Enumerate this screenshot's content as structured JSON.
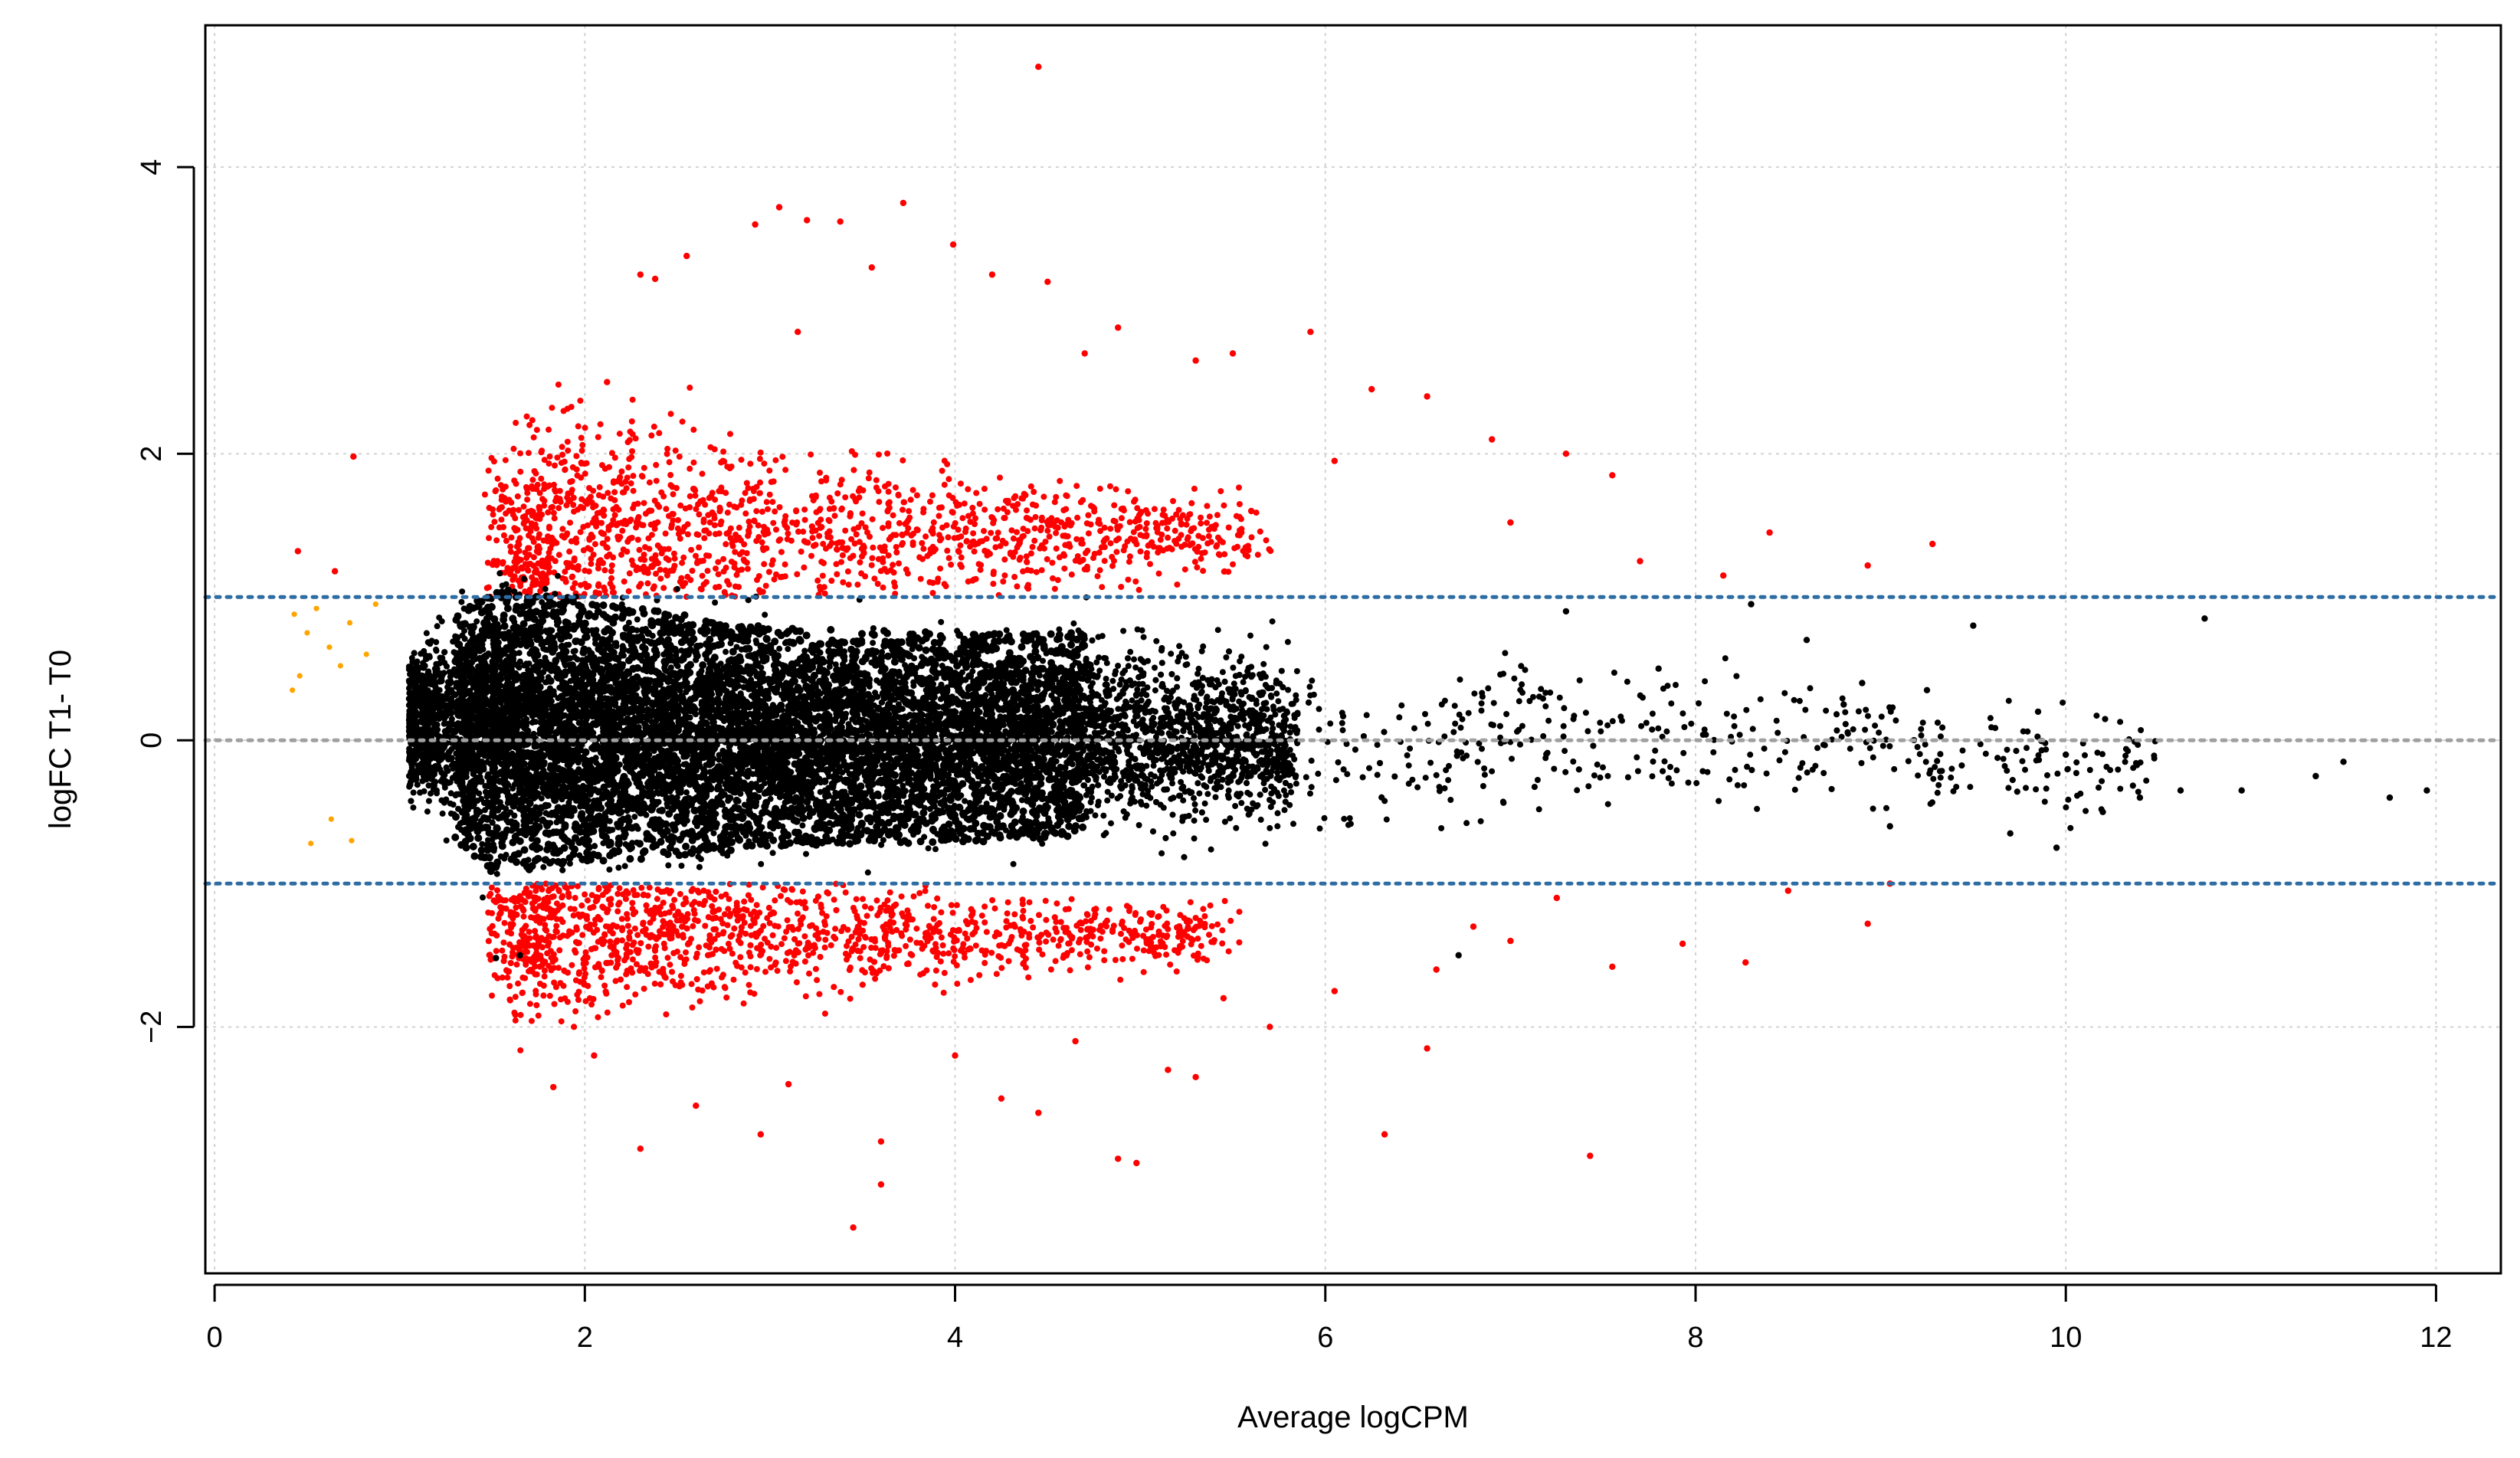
{
  "chart_data": {
    "type": "scatter",
    "title": "",
    "xlabel": "Average logCPM",
    "ylabel": "logFC  T1-  T0",
    "xlim": [
      -0.05,
      12.35
    ],
    "ylim": [
      -3.72,
      4.99
    ],
    "grid": true,
    "x_ticks": [
      {
        "value": 0,
        "label": "0"
      },
      {
        "value": 2,
        "label": "2"
      },
      {
        "value": 4,
        "label": "4"
      },
      {
        "value": 6,
        "label": "6"
      },
      {
        "value": 8,
        "label": "8"
      },
      {
        "value": 10,
        "label": "10"
      },
      {
        "value": 12,
        "label": "12"
      }
    ],
    "y_ticks": [
      {
        "value": -2,
        "label": "−2"
      },
      {
        "value": 0,
        "label": "0"
      },
      {
        "value": 2,
        "label": "2"
      },
      {
        "value": 4,
        "label": "4"
      }
    ],
    "reference_lines": [
      {
        "name": "zero-line",
        "y": 0,
        "color": "#a0a0a0",
        "style": "dotted"
      },
      {
        "name": "upper-threshold-line",
        "y": 1,
        "color": "#2e6ca4",
        "style": "dotted"
      },
      {
        "name": "lower-threshold-line",
        "y": -1,
        "color": "#2e6ca4",
        "style": "dotted"
      }
    ],
    "series": [
      {
        "name": "not-significant",
        "color": "#000000",
        "description": "dense cloud of non-differentially expressed genes",
        "envelope": {
          "x": [
            1.0,
            1.5,
            2.0,
            3.0,
            4.0,
            5.0,
            6.0,
            7.0,
            8.0,
            9.0,
            10.0,
            11.0,
            12.0
          ],
          "upper": [
            0.75,
            1.45,
            1.3,
            1.05,
            1.0,
            1.0,
            0.95,
            0.95,
            0.85,
            0.7,
            0.5,
            0.3,
            0.1
          ],
          "lower": [
            -0.5,
            -1.25,
            -1.15,
            -1.0,
            -0.95,
            -0.9,
            -0.95,
            -0.9,
            -0.8,
            -0.7,
            -0.75,
            -0.45,
            -0.45
          ]
        },
        "points": [
          [
            1.65,
            -1.5
          ],
          [
            6.72,
            -1.5
          ],
          [
            1.52,
            -1.52
          ],
          [
            7.3,
            0.9
          ],
          [
            7.8,
            0.5
          ],
          [
            8.3,
            0.95
          ],
          [
            8.6,
            0.7
          ],
          [
            8.9,
            0.4
          ],
          [
            9.05,
            -0.6
          ],
          [
            9.5,
            0.8
          ],
          [
            9.7,
            -0.65
          ],
          [
            9.85,
            0.2
          ],
          [
            9.95,
            -0.75
          ],
          [
            10.0,
            -0.1
          ],
          [
            10.2,
            -0.5
          ],
          [
            10.4,
            -0.4
          ],
          [
            10.62,
            -0.35
          ],
          [
            10.75,
            0.85
          ],
          [
            10.95,
            -0.35
          ],
          [
            11.35,
            -0.25
          ],
          [
            11.5,
            -0.15
          ],
          [
            11.75,
            -0.4
          ],
          [
            11.95,
            -0.35
          ],
          [
            9.25,
            0.35
          ],
          [
            8.8,
            0.25
          ]
        ]
      },
      {
        "name": "significant",
        "color": "#ff0000",
        "description": "differentially expressed genes with |logFC| > 1",
        "points": [
          [
            4.45,
            4.7
          ],
          [
            3.72,
            3.75
          ],
          [
            3.05,
            3.72
          ],
          [
            3.2,
            3.63
          ],
          [
            3.38,
            3.62
          ],
          [
            2.92,
            3.6
          ],
          [
            3.99,
            3.46
          ],
          [
            2.55,
            3.38
          ],
          [
            2.3,
            3.25
          ],
          [
            2.38,
            3.22
          ],
          [
            3.55,
            3.3
          ],
          [
            4.2,
            3.25
          ],
          [
            4.5,
            3.2
          ],
          [
            3.15,
            2.85
          ],
          [
            4.88,
            2.88
          ],
          [
            5.3,
            2.65
          ],
          [
            5.5,
            2.7
          ],
          [
            5.92,
            2.85
          ],
          [
            6.25,
            2.45
          ],
          [
            6.55,
            2.4
          ],
          [
            2.12,
            2.5
          ],
          [
            4.7,
            2.7
          ],
          [
            0.75,
            1.98
          ],
          [
            7.3,
            2.0
          ],
          [
            7.55,
            1.85
          ],
          [
            8.4,
            1.45
          ],
          [
            9.28,
            1.37
          ],
          [
            8.93,
            1.22
          ],
          [
            8.15,
            1.15
          ],
          [
            7.7,
            1.25
          ],
          [
            6.9,
            2.1
          ],
          [
            7.0,
            1.52
          ],
          [
            6.05,
            1.95
          ],
          [
            5.6,
            1.6
          ],
          [
            0.45,
            1.32
          ],
          [
            0.65,
            1.18
          ],
          [
            2.3,
            -2.85
          ],
          [
            3.45,
            -3.4
          ],
          [
            3.6,
            -3.1
          ],
          [
            2.95,
            -2.75
          ],
          [
            3.6,
            -2.8
          ],
          [
            4.88,
            -2.92
          ],
          [
            4.98,
            -2.95
          ],
          [
            6.32,
            -2.75
          ],
          [
            7.43,
            -2.9
          ],
          [
            4.45,
            -2.6
          ],
          [
            4.25,
            -2.5
          ],
          [
            5.15,
            -2.3
          ],
          [
            5.3,
            -2.35
          ],
          [
            6.55,
            -2.15
          ],
          [
            6.05,
            -1.75
          ],
          [
            5.7,
            -2.0
          ],
          [
            7.55,
            -1.58
          ],
          [
            7.93,
            -1.42
          ],
          [
            8.27,
            -1.55
          ],
          [
            8.93,
            -1.28
          ],
          [
            9.05,
            -1.0
          ],
          [
            8.5,
            -1.05
          ],
          [
            7.25,
            -1.1
          ],
          [
            6.8,
            -1.3
          ],
          [
            1.83,
            -2.42
          ],
          [
            2.05,
            -2.2
          ],
          [
            2.6,
            -2.55
          ],
          [
            3.1,
            -2.4
          ],
          [
            4.0,
            -2.2
          ],
          [
            4.65,
            -2.1
          ],
          [
            5.45,
            -1.8
          ],
          [
            6.6,
            -1.6
          ],
          [
            7.0,
            -1.4
          ],
          [
            1.6,
            -1.2
          ]
        ],
        "clusters": [
          {
            "x_range": [
              1.6,
              5.6
            ],
            "y_center": 1.45,
            "spread": 0.55
          },
          {
            "x_range": [
              1.6,
              5.4
            ],
            "y_center": -1.35,
            "spread": 0.4
          }
        ]
      },
      {
        "name": "low-abundance",
        "color": "#ffa500",
        "description": "low-count genes filtered out",
        "points": [
          [
            0.43,
            0.88
          ],
          [
            0.5,
            0.75
          ],
          [
            0.55,
            0.92
          ],
          [
            0.62,
            0.65
          ],
          [
            0.68,
            0.52
          ],
          [
            0.73,
            0.82
          ],
          [
            0.82,
            0.6
          ],
          [
            0.87,
            0.95
          ],
          [
            0.46,
            0.45
          ],
          [
            0.42,
            0.35
          ],
          [
            0.52,
            -0.72
          ],
          [
            0.63,
            -0.55
          ],
          [
            0.74,
            -0.7
          ]
        ]
      }
    ]
  }
}
